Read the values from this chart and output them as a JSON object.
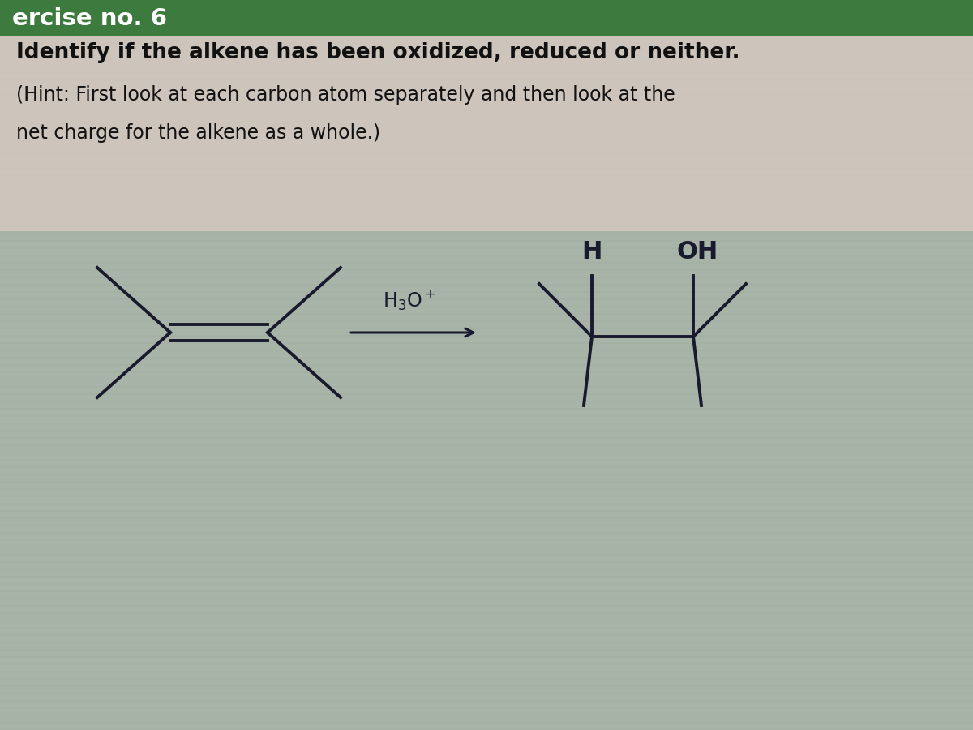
{
  "bg_color": "#a8b4a8",
  "text_area_color": "#d4c8c0",
  "header_color": "#3d7a3d",
  "header_text": "ercise no. 6",
  "title_line1": "Identify if the alkene has been oxidized, reduced or neither.",
  "title_line2": "(Hint: First look at each carbon atom separately and then look at the",
  "title_line3": "net charge for the alkene as a whole.)",
  "text_color": "#111111",
  "label_H": "H",
  "label_OH": "OH",
  "font_size_title": 19,
  "font_size_hint": 17,
  "font_size_label": 22,
  "font_size_reagent": 17,
  "line_color": "#1a1a2e",
  "line_width": 2.8,
  "header_font_size": 21
}
